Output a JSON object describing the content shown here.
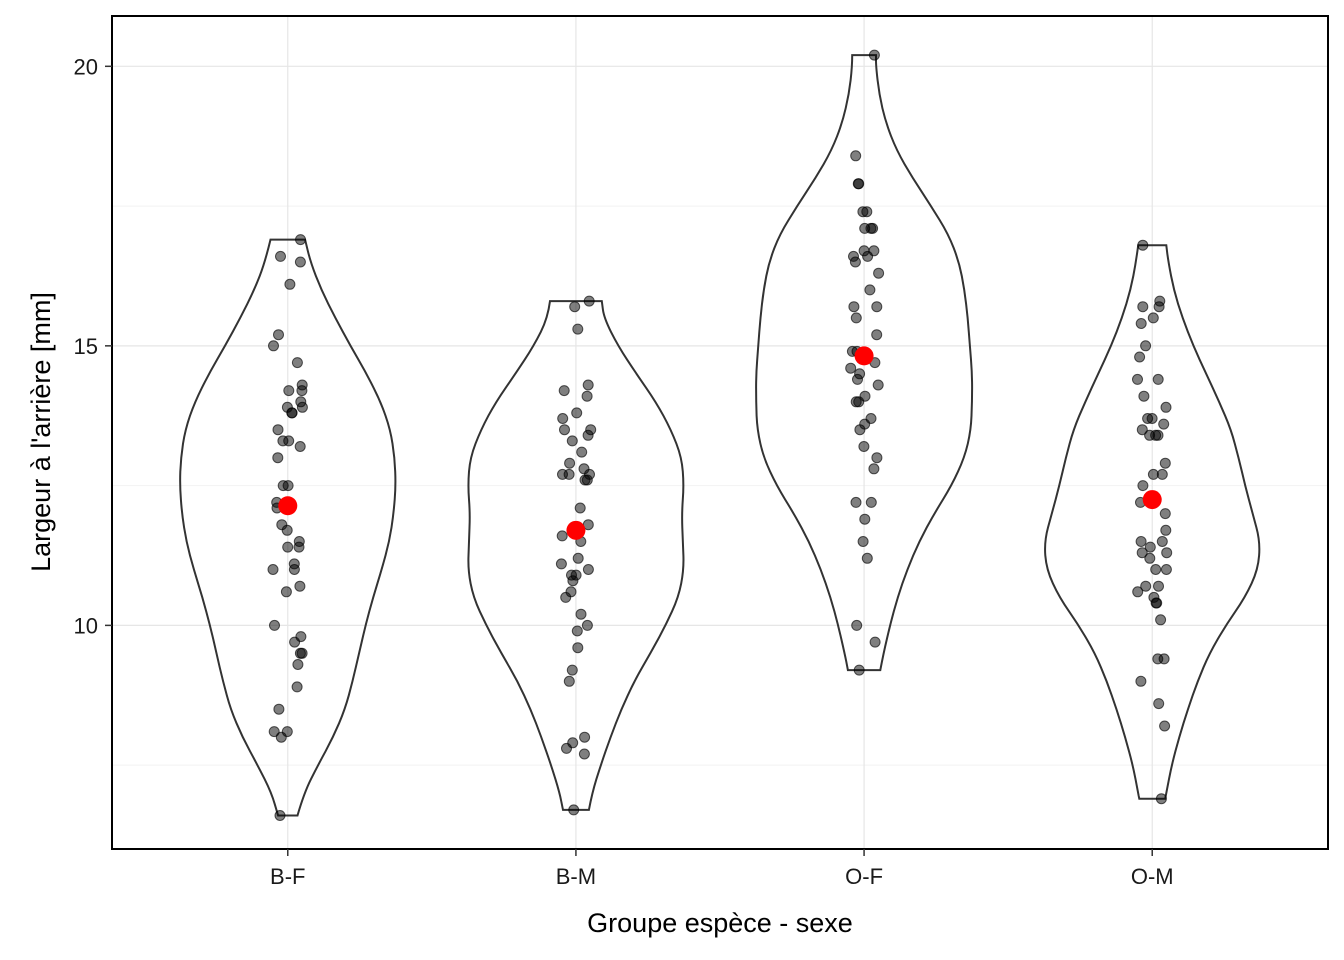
{
  "chart_data": {
    "type": "violin",
    "xlabel": "Groupe espèce - sexe",
    "ylabel": "Largeur à l'arrière  [mm]",
    "ylim": [
      6.0,
      20.9
    ],
    "yticks": [
      10,
      15,
      20
    ],
    "grid": true,
    "categories": [
      "B-F",
      "B-M",
      "O-F",
      "O-M"
    ],
    "colors": {
      "points": "#000000",
      "mean": "#ff0000",
      "violin": "#333333"
    },
    "groups": [
      {
        "name": "B-F",
        "mean": 12.14,
        "points": [
          16.9,
          16.6,
          16.5,
          16.1,
          15.2,
          15.0,
          14.7,
          14.3,
          14.2,
          14.2,
          14.0,
          13.9,
          13.9,
          13.8,
          13.8,
          13.5,
          13.3,
          13.3,
          13.2,
          13.0,
          12.5,
          12.5,
          12.2,
          12.2,
          12.1,
          11.8,
          11.7,
          11.5,
          11.4,
          11.4,
          11.1,
          11.0,
          11.0,
          10.7,
          10.6,
          10.0,
          9.8,
          9.7,
          9.5,
          9.5,
          9.3,
          8.9,
          8.5,
          8.1,
          8.1,
          8.0,
          6.6
        ],
        "violin": {
          "ymin": 6.6,
          "ymax": 16.9,
          "profile": [
            [
              6.6,
              0.09
            ],
            [
              7.0,
              0.15
            ],
            [
              7.5,
              0.28
            ],
            [
              8.0,
              0.42
            ],
            [
              8.5,
              0.53
            ],
            [
              9.0,
              0.6
            ],
            [
              9.5,
              0.66
            ],
            [
              10.0,
              0.72
            ],
            [
              10.5,
              0.79
            ],
            [
              11.0,
              0.87
            ],
            [
              11.5,
              0.94
            ],
            [
              12.0,
              0.98
            ],
            [
              12.5,
              1.0
            ],
            [
              13.0,
              0.99
            ],
            [
              13.5,
              0.95
            ],
            [
              14.0,
              0.86
            ],
            [
              14.5,
              0.73
            ],
            [
              15.0,
              0.58
            ],
            [
              15.5,
              0.44
            ],
            [
              16.0,
              0.31
            ],
            [
              16.5,
              0.21
            ],
            [
              16.9,
              0.16
            ]
          ]
        }
      },
      {
        "name": "B-M",
        "mean": 11.7,
        "points": [
          15.8,
          15.7,
          15.3,
          14.3,
          14.2,
          14.1,
          13.8,
          13.7,
          13.5,
          13.5,
          13.4,
          13.3,
          13.1,
          12.9,
          12.8,
          12.7,
          12.7,
          12.7,
          12.6,
          12.6,
          12.1,
          11.8,
          11.6,
          11.5,
          11.2,
          11.1,
          11.0,
          10.9,
          10.9,
          10.8,
          10.6,
          10.5,
          10.2,
          10.0,
          9.9,
          9.6,
          9.2,
          9.0,
          8.0,
          7.9,
          7.8,
          7.7,
          6.7
        ],
        "violin": {
          "ymin": 6.7,
          "ymax": 15.8,
          "profile": [
            [
              6.7,
              0.12
            ],
            [
              7.0,
              0.15
            ],
            [
              7.5,
              0.23
            ],
            [
              8.0,
              0.32
            ],
            [
              8.5,
              0.42
            ],
            [
              9.0,
              0.54
            ],
            [
              9.5,
              0.69
            ],
            [
              10.0,
              0.83
            ],
            [
              10.5,
              0.95
            ],
            [
              11.0,
              1.0
            ],
            [
              11.5,
              0.99
            ],
            [
              12.0,
              0.98
            ],
            [
              12.5,
              1.0
            ],
            [
              13.0,
              0.98
            ],
            [
              13.5,
              0.88
            ],
            [
              14.0,
              0.74
            ],
            [
              14.5,
              0.56
            ],
            [
              15.0,
              0.39
            ],
            [
              15.5,
              0.26
            ],
            [
              15.8,
              0.24
            ]
          ]
        }
      },
      {
        "name": "O-F",
        "mean": 14.82,
        "points": [
          20.2,
          18.4,
          17.9,
          17.9,
          17.4,
          17.4,
          17.1,
          17.1,
          17.1,
          16.7,
          16.7,
          16.6,
          16.6,
          16.5,
          16.3,
          16.0,
          15.7,
          15.7,
          15.5,
          15.2,
          14.9,
          14.9,
          14.7,
          14.6,
          14.5,
          14.4,
          14.3,
          14.1,
          14.0,
          14.0,
          13.7,
          13.6,
          13.5,
          13.2,
          13.0,
          12.8,
          12.2,
          12.2,
          11.9,
          11.5,
          11.2,
          10.0,
          9.7,
          9.2
        ],
        "violin": {
          "ymin": 9.2,
          "ymax": 20.2,
          "profile": [
            [
              9.2,
              0.15
            ],
            [
              9.5,
              0.18
            ],
            [
              10.0,
              0.24
            ],
            [
              10.5,
              0.31
            ],
            [
              11.0,
              0.4
            ],
            [
              11.5,
              0.51
            ],
            [
              12.0,
              0.65
            ],
            [
              12.5,
              0.81
            ],
            [
              13.0,
              0.93
            ],
            [
              13.5,
              0.99
            ],
            [
              14.0,
              1.0
            ],
            [
              14.5,
              1.0
            ],
            [
              15.0,
              0.98
            ],
            [
              15.5,
              0.96
            ],
            [
              16.0,
              0.93
            ],
            [
              16.5,
              0.88
            ],
            [
              17.0,
              0.78
            ],
            [
              17.5,
              0.62
            ],
            [
              18.0,
              0.45
            ],
            [
              18.5,
              0.3
            ],
            [
              19.0,
              0.2
            ],
            [
              19.5,
              0.14
            ],
            [
              20.0,
              0.11
            ],
            [
              20.2,
              0.11
            ]
          ]
        }
      },
      {
        "name": "O-M",
        "mean": 12.25,
        "points": [
          16.8,
          15.8,
          15.7,
          15.7,
          15.5,
          15.4,
          15.0,
          14.8,
          14.4,
          14.4,
          14.1,
          13.9,
          13.7,
          13.7,
          13.6,
          13.5,
          13.4,
          13.4,
          13.4,
          12.9,
          12.7,
          12.7,
          12.5,
          12.2,
          12.0,
          11.7,
          11.5,
          11.5,
          11.4,
          11.3,
          11.3,
          11.2,
          11.0,
          11.0,
          10.7,
          10.7,
          10.6,
          10.5,
          10.4,
          10.4,
          10.1,
          9.4,
          9.4,
          9.0,
          8.6,
          8.2,
          6.9
        ],
        "violin": {
          "ymin": 6.9,
          "ymax": 16.8,
          "profile": [
            [
              6.9,
              0.12
            ],
            [
              7.0,
              0.13
            ],
            [
              7.5,
              0.18
            ],
            [
              8.0,
              0.25
            ],
            [
              8.5,
              0.33
            ],
            [
              9.0,
              0.42
            ],
            [
              9.5,
              0.53
            ],
            [
              10.0,
              0.68
            ],
            [
              10.5,
              0.86
            ],
            [
              11.0,
              0.98
            ],
            [
              11.5,
              1.0
            ],
            [
              12.0,
              0.93
            ],
            [
              12.5,
              0.86
            ],
            [
              13.0,
              0.8
            ],
            [
              13.5,
              0.73
            ],
            [
              14.0,
              0.62
            ],
            [
              14.5,
              0.5
            ],
            [
              15.0,
              0.38
            ],
            [
              15.5,
              0.28
            ],
            [
              16.0,
              0.2
            ],
            [
              16.5,
              0.15
            ],
            [
              16.8,
              0.13
            ]
          ]
        }
      }
    ]
  }
}
